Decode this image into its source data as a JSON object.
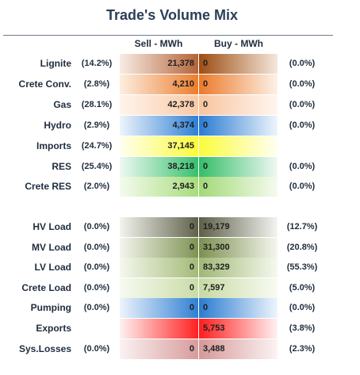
{
  "chart_data": {
    "type": "table",
    "title": "Trade's Volume Mix",
    "columns": {
      "sell": "Sell - MWh",
      "buy": "Buy - MWh"
    },
    "groups": [
      {
        "rows": [
          {
            "label": "Lignite",
            "sell_pct": "(14.2%)",
            "sell": "21,378",
            "buy": "0",
            "buy_pct": "(0.0%)",
            "colors": {
              "sell_left": "#f9ece4",
              "sell_right": "#b2643a",
              "buy_left": "#9c4d12",
              "buy_right": "#f6e7dc",
              "text": "#1f1f1f"
            }
          },
          {
            "label": "Crete Conv.",
            "sell_pct": "(2.8%)",
            "sell": "4,210",
            "buy": "0",
            "buy_pct": "(0.0%)",
            "colors": {
              "sell_left": "#fdeee1",
              "sell_right": "#ec7d2c",
              "buy_left": "#eb7a2a",
              "buy_right": "#fdf1e7",
              "text": "#1f1f1f"
            }
          },
          {
            "label": "Gas",
            "sell_pct": "(28.1%)",
            "sell": "42,378",
            "buy": "0",
            "buy_pct": "(0.0%)",
            "colors": {
              "sell_left": "#fff4ec",
              "sell_right": "#f9c9a5",
              "buy_left": "#f8c49e",
              "buy_right": "#fff6f0",
              "text": "#1f1f1f"
            }
          },
          {
            "label": "Hydro",
            "sell_pct": "(2.9%)",
            "sell": "4,374",
            "buy": "0",
            "buy_pct": "(0.0%)",
            "colors": {
              "sell_left": "#edf4fc",
              "sell_right": "#2f7fd3",
              "buy_left": "#2a7bd1",
              "buy_right": "#eef5fd",
              "text": "#1f1f1f"
            }
          },
          {
            "label": "Imports",
            "sell_pct": "(24.7%)",
            "sell": "37,145",
            "buy": "",
            "buy_pct": "",
            "colors": {
              "sell_left": "#fffff0",
              "sell_right": "#fbfb3c",
              "buy_left": "#fbfb3c",
              "buy_right": "#fffff2",
              "text": "#1f1f1f"
            }
          },
          {
            "label": "RES",
            "sell_pct": "(25.4%)",
            "sell": "38,218",
            "buy": "0",
            "buy_pct": "(0.0%)",
            "colors": {
              "sell_left": "#eef9f2",
              "sell_right": "#37c06c",
              "buy_left": "#34bd68",
              "buy_right": "#eff9f3",
              "text": "#1f1f1f"
            }
          },
          {
            "label": "Crete RES",
            "sell_pct": "(2.0%)",
            "sell": "2,943",
            "buy": "0",
            "buy_pct": "(0.0%)",
            "colors": {
              "sell_left": "#f4fbee",
              "sell_right": "#a7dc7c",
              "buy_left": "#a2d977",
              "buy_right": "#f5fbef",
              "text": "#1f1f1f"
            }
          }
        ]
      },
      {
        "rows": [
          {
            "label": "HV Load",
            "sell_pct": "(0.0%)",
            "sell": "0",
            "buy": "19,179",
            "buy_pct": "(12.7%)",
            "colors": {
              "sell_left": "#f4f4f0",
              "sell_right": "#5f6149",
              "buy_left": "#5c5e46",
              "buy_right": "#f4f4f1",
              "text": "#1f1f1f"
            }
          },
          {
            "label": "MV Load",
            "sell_pct": "(0.0%)",
            "sell": "0",
            "buy": "31,300",
            "buy_pct": "(20.8%)",
            "colors": {
              "sell_left": "#f4f6ee",
              "sell_right": "#7f9252",
              "buy_left": "#7c8f4f",
              "buy_right": "#f5f7ef",
              "text": "#1f1f1f"
            }
          },
          {
            "label": "LV Load",
            "sell_pct": "(0.0%)",
            "sell": "0",
            "buy": "83,329",
            "buy_pct": "(55.3%)",
            "colors": {
              "sell_left": "#f5f8ee",
              "sell_right": "#a3ba77",
              "buy_left": "#a0b774",
              "buy_right": "#f5f9ef",
              "text": "#1f1f1f"
            }
          },
          {
            "label": "Crete Load",
            "sell_pct": "(0.0%)",
            "sell": "0",
            "buy": "7,597",
            "buy_pct": "(5.0%)",
            "colors": {
              "sell_left": "#f7faf1",
              "sell_right": "#c9dca7",
              "buy_left": "#c6daa3",
              "buy_right": "#f8fbf2",
              "text": "#1f1f1f"
            }
          },
          {
            "label": "Pumping",
            "sell_pct": "(0.0%)",
            "sell": "0",
            "buy": "0",
            "buy_pct": "(0.0%)",
            "colors": {
              "sell_left": "#edf4fc",
              "sell_right": "#2f7fd3",
              "buy_left": "#2a7bd1",
              "buy_right": "#eef5fd",
              "text": "#1f1f1f"
            }
          },
          {
            "label": "Exports",
            "sell_pct": "",
            "sell": "",
            "buy": "5,753",
            "buy_pct": "(3.8%)",
            "colors": {
              "sell_left": "#fff1f1",
              "sell_right": "#ff2020",
              "buy_left": "#ff1c1c",
              "buy_right": "#fff2f2",
              "text": "#1f1f1f"
            }
          },
          {
            "label": "Sys.Losses",
            "sell_pct": "(0.0%)",
            "sell": "0",
            "buy": "3,488",
            "buy_pct": "(2.3%)",
            "colors": {
              "sell_left": "#fbf2f2",
              "sell_right": "#d79b9b",
              "buy_left": "#d59898",
              "buy_right": "#fcf3f3",
              "text": "#1f1f1f"
            }
          }
        ]
      }
    ]
  }
}
